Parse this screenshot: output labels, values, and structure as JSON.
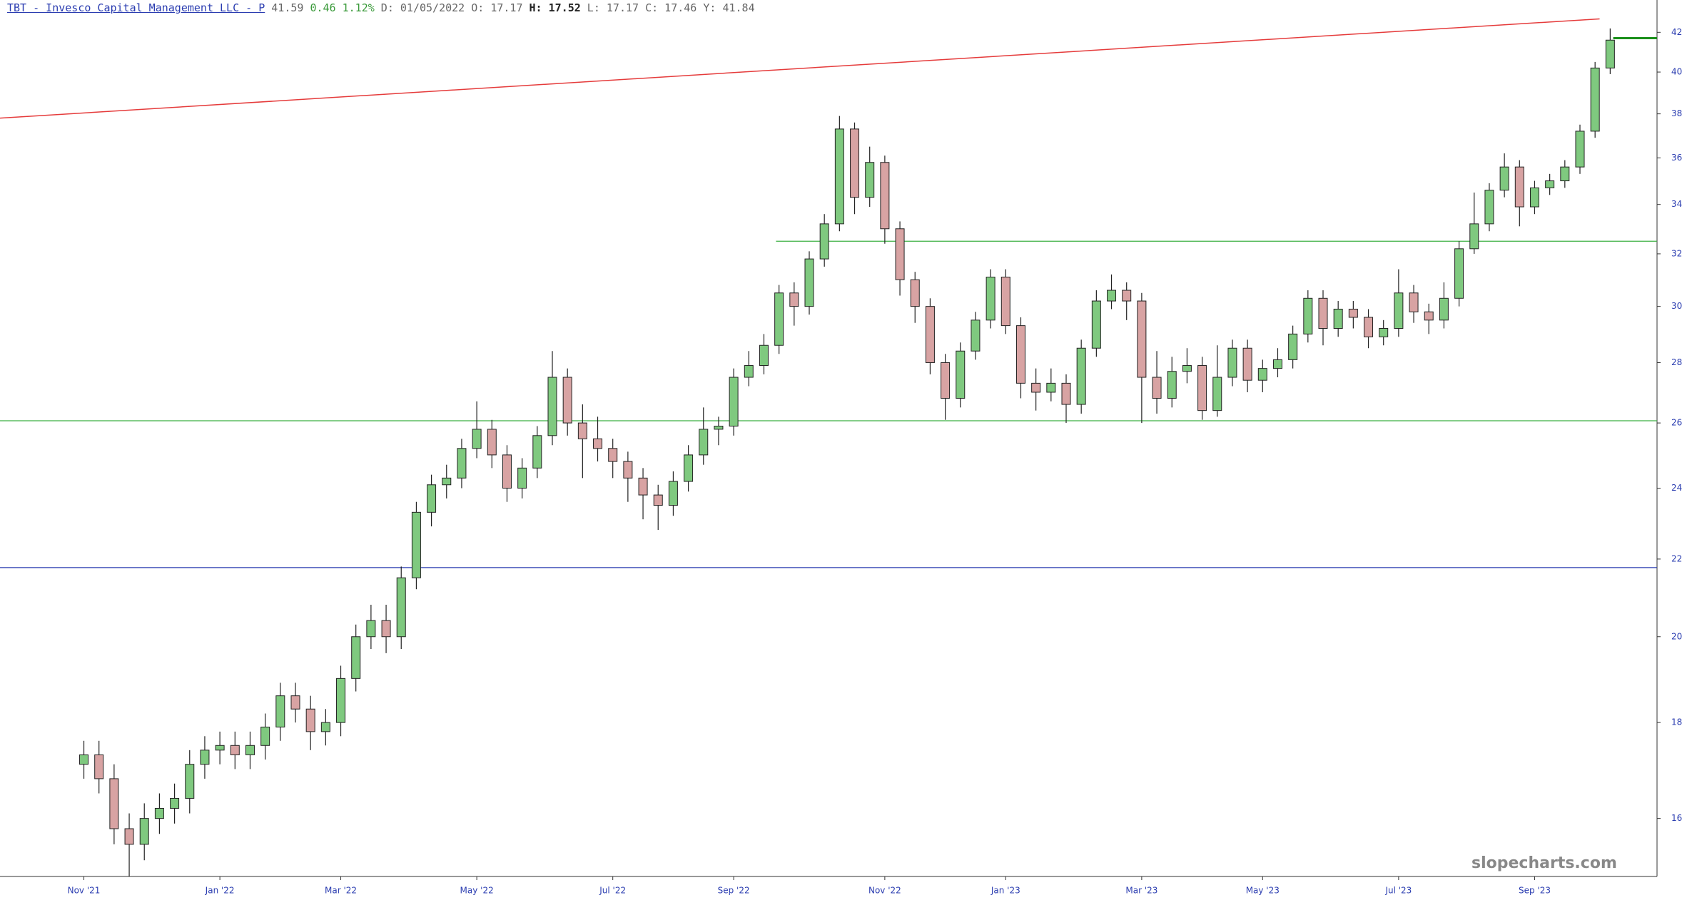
{
  "header": {
    "symbol": "TBT - Invesco Capital Management LLC - P",
    "last": "41.59",
    "change": "0.46",
    "change_pct": "1.12%",
    "ohlc": "D: 01/05/2022 O: 17.17 ",
    "high_label": "H: ",
    "high": "17.52",
    "rest": " L: 17.17 C: 17.46 Y: 41.84"
  },
  "watermark": "slopecharts.com",
  "chart_data": {
    "type": "candlestick",
    "log_scale": true,
    "categories": [
      "Nov '21",
      null,
      null,
      null,
      null,
      null,
      null,
      null,
      null,
      "Jan '22",
      null,
      null,
      null,
      null,
      null,
      null,
      null,
      "Mar '22",
      null,
      null,
      null,
      null,
      null,
      null,
      null,
      null,
      "May '22",
      null,
      null,
      null,
      null,
      null,
      null,
      null,
      null,
      "Jul '22",
      null,
      null,
      null,
      null,
      null,
      null,
      null,
      "Sep '22",
      null,
      null,
      null,
      null,
      null,
      null,
      null,
      null,
      null,
      "Nov '22",
      null,
      null,
      null,
      null,
      null,
      null,
      null,
      "Jan '23",
      null,
      null,
      null,
      null,
      null,
      null,
      null,
      null,
      "Mar '23",
      null,
      null,
      null,
      null,
      null,
      null,
      null,
      "May '23",
      null,
      null,
      null,
      null,
      null,
      null,
      null,
      null,
      "Jul '23",
      null,
      null,
      null,
      null,
      null,
      null,
      null,
      null,
      "Sep '23",
      null,
      null,
      null,
      null,
      null
    ],
    "xlim": [
      -5.55,
      104.1
    ],
    "ylim": [
      14.9,
      43.7
    ],
    "yticks": [
      16,
      18,
      20,
      22,
      24,
      26,
      28,
      30,
      32,
      34,
      36,
      38,
      40,
      42
    ],
    "up_color": "#7fc97f",
    "down_color": "#d8a3a3",
    "open": [
      17.1,
      17.3,
      16.8,
      15.8,
      15.5,
      16.0,
      16.2,
      16.4,
      17.1,
      17.4,
      17.5,
      17.3,
      17.5,
      17.9,
      18.6,
      18.3,
      17.8,
      18.0,
      19.0,
      20.0,
      20.4,
      20.0,
      21.5,
      23.3,
      24.1,
      24.3,
      25.2,
      25.8,
      25.0,
      24.0,
      24.6,
      25.6,
      27.5,
      26.0,
      25.5,
      25.2,
      24.8,
      24.3,
      23.8,
      23.5,
      24.2,
      25.0,
      25.8,
      25.9,
      27.5,
      27.9,
      28.6,
      30.5,
      30.0,
      31.8,
      33.2,
      37.3,
      34.3,
      35.8,
      33.0,
      31.0,
      30.0,
      28.0,
      26.8,
      28.4,
      29.5,
      31.1,
      29.3,
      27.3,
      27.0,
      27.3,
      26.6,
      28.5,
      30.2,
      30.6,
      30.2,
      27.5,
      26.8,
      27.7,
      27.9,
      26.4,
      27.5,
      28.5,
      27.4,
      27.8,
      28.1,
      29.0,
      30.3,
      29.2,
      29.9,
      29.6,
      28.9,
      29.2,
      30.5,
      29.8,
      29.5,
      30.3,
      32.2,
      33.2,
      34.6,
      35.6,
      33.9,
      34.7,
      35.0,
      35.6,
      37.2,
      40.2
    ],
    "high": [
      17.6,
      17.6,
      17.1,
      16.1,
      16.3,
      16.5,
      16.7,
      17.4,
      17.7,
      17.8,
      17.8,
      17.8,
      18.2,
      18.9,
      18.9,
      18.6,
      18.3,
      19.3,
      20.3,
      20.8,
      20.8,
      21.8,
      23.6,
      24.4,
      24.7,
      25.5,
      26.7,
      26.1,
      25.3,
      24.9,
      25.9,
      28.4,
      27.8,
      26.6,
      26.2,
      25.5,
      25.1,
      24.6,
      24.1,
      24.5,
      25.3,
      26.5,
      26.2,
      27.8,
      28.4,
      29.0,
      30.8,
      30.9,
      32.1,
      33.6,
      37.9,
      37.6,
      36.5,
      36.1,
      33.3,
      31.3,
      30.3,
      28.3,
      28.7,
      29.8,
      31.4,
      31.4,
      29.6,
      27.8,
      27.8,
      27.6,
      28.8,
      30.6,
      31.2,
      30.9,
      30.5,
      28.4,
      28.2,
      28.5,
      28.2,
      28.6,
      28.8,
      28.8,
      28.1,
      28.5,
      29.3,
      30.6,
      30.6,
      30.2,
      30.2,
      29.9,
      29.5,
      31.4,
      30.8,
      30.1,
      30.9,
      32.5,
      34.5,
      34.9,
      36.2,
      35.9,
      35.0,
      35.3,
      35.9,
      37.5,
      40.5,
      42.2
    ],
    "low": [
      16.8,
      16.5,
      15.5,
      14.9,
      15.2,
      15.7,
      15.9,
      16.1,
      16.8,
      17.1,
      17.0,
      17.0,
      17.2,
      17.6,
      18.0,
      17.4,
      17.5,
      17.7,
      18.7,
      19.7,
      19.6,
      19.7,
      21.2,
      22.9,
      23.7,
      24.0,
      24.9,
      24.6,
      23.6,
      23.7,
      24.3,
      25.3,
      25.6,
      24.3,
      24.8,
      24.3,
      23.6,
      23.1,
      22.8,
      23.2,
      23.9,
      24.7,
      25.3,
      25.6,
      27.2,
      27.6,
      28.3,
      29.3,
      29.7,
      31.5,
      32.9,
      33.6,
      33.9,
      32.4,
      30.4,
      29.4,
      27.6,
      26.1,
      26.5,
      28.1,
      29.2,
      29.0,
      26.8,
      26.4,
      26.7,
      26.0,
      26.3,
      28.2,
      29.9,
      29.5,
      26.0,
      26.3,
      26.5,
      27.3,
      26.1,
      26.2,
      27.2,
      27.0,
      27.0,
      27.5,
      27.8,
      28.7,
      28.6,
      28.9,
      29.2,
      28.5,
      28.6,
      28.9,
      29.4,
      29.0,
      29.2,
      30.0,
      32.0,
      32.9,
      34.3,
      33.1,
      33.6,
      34.4,
      34.7,
      35.3,
      36.9,
      39.9
    ],
    "close": [
      17.3,
      16.8,
      15.8,
      15.5,
      16.0,
      16.2,
      16.4,
      17.1,
      17.4,
      17.5,
      17.3,
      17.5,
      17.9,
      18.6,
      18.3,
      17.8,
      18.0,
      19.0,
      20.0,
      20.4,
      20.0,
      21.5,
      23.3,
      24.1,
      24.3,
      25.2,
      25.8,
      25.0,
      24.0,
      24.6,
      25.6,
      27.5,
      26.0,
      25.5,
      25.2,
      24.8,
      24.3,
      23.8,
      23.5,
      24.2,
      25.0,
      25.8,
      25.9,
      27.5,
      27.9,
      28.6,
      30.5,
      30.0,
      31.8,
      33.2,
      37.3,
      34.3,
      35.8,
      33.0,
      31.0,
      30.0,
      28.0,
      26.8,
      28.4,
      29.5,
      31.1,
      29.3,
      27.3,
      27.0,
      27.3,
      26.6,
      28.5,
      30.2,
      30.6,
      30.2,
      27.5,
      26.8,
      27.7,
      27.9,
      26.4,
      27.5,
      28.5,
      27.4,
      27.8,
      28.1,
      29.0,
      30.3,
      29.2,
      29.9,
      29.6,
      28.9,
      29.2,
      30.5,
      29.8,
      29.5,
      30.3,
      32.2,
      33.2,
      34.6,
      35.6,
      33.9,
      34.7,
      35.0,
      35.6,
      37.2,
      40.2,
      41.6
    ],
    "levels": [
      {
        "value": 26.07,
        "from": -5.55,
        "color": "#3cb043"
      },
      {
        "value": 32.5,
        "from": 45.8,
        "color": "#3cb043"
      },
      {
        "value": 21.77,
        "from": -5.55,
        "color": "#2a3cb0"
      },
      {
        "value": 41.7,
        "from": 101.2,
        "color": "#1a8f1a",
        "width": 3
      }
    ],
    "trendline": {
      "x": [
        -5.55,
        100.3
      ],
      "y": [
        37.8,
        42.7
      ],
      "color": "#e53b3b"
    }
  }
}
